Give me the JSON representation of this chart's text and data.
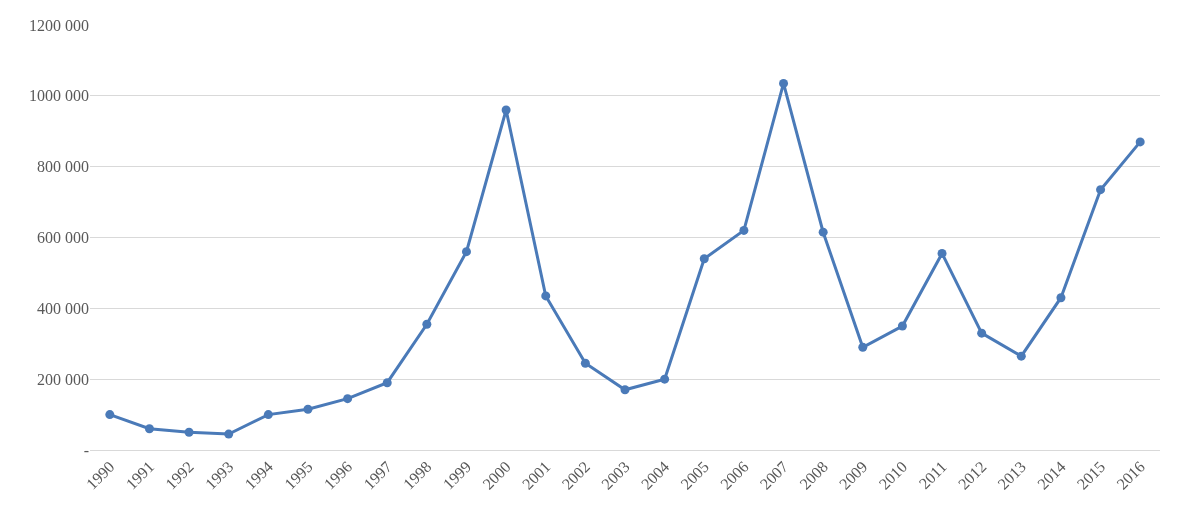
{
  "chart_data": {
    "type": "line",
    "categories": [
      "1990",
      "1991",
      "1992",
      "1993",
      "1994",
      "1995",
      "1996",
      "1997",
      "1998",
      "1999",
      "2000",
      "2001",
      "2002",
      "2003",
      "2004",
      "2005",
      "2006",
      "2007",
      "2008",
      "2009",
      "2010",
      "2011",
      "2012",
      "2013",
      "2014",
      "2015",
      "2016"
    ],
    "series": [
      {
        "color": "#4a7ab8",
        "values": [
          100000,
          60000,
          50000,
          45000,
          100000,
          115000,
          145000,
          190000,
          355000,
          560000,
          960000,
          435000,
          245000,
          170000,
          200000,
          540000,
          620000,
          1035000,
          615000,
          290000,
          350000,
          555000,
          330000,
          265000,
          430000,
          735000,
          870000
        ]
      }
    ],
    "ylim": [
      0,
      1200000
    ],
    "yticks": [
      {
        "value": 0,
        "label": "-"
      },
      {
        "value": 200000,
        "label": "200 000"
      },
      {
        "value": 400000,
        "label": "400 000"
      },
      {
        "value": 600000,
        "label": "600 000"
      },
      {
        "value": 800000,
        "label": "800 000"
      },
      {
        "value": 1000000,
        "label": "1000 000"
      },
      {
        "value": 1200000,
        "label": "1200 000"
      }
    ],
    "grid": "y",
    "marker": "circle",
    "line_style": "solid",
    "legend": false
  }
}
